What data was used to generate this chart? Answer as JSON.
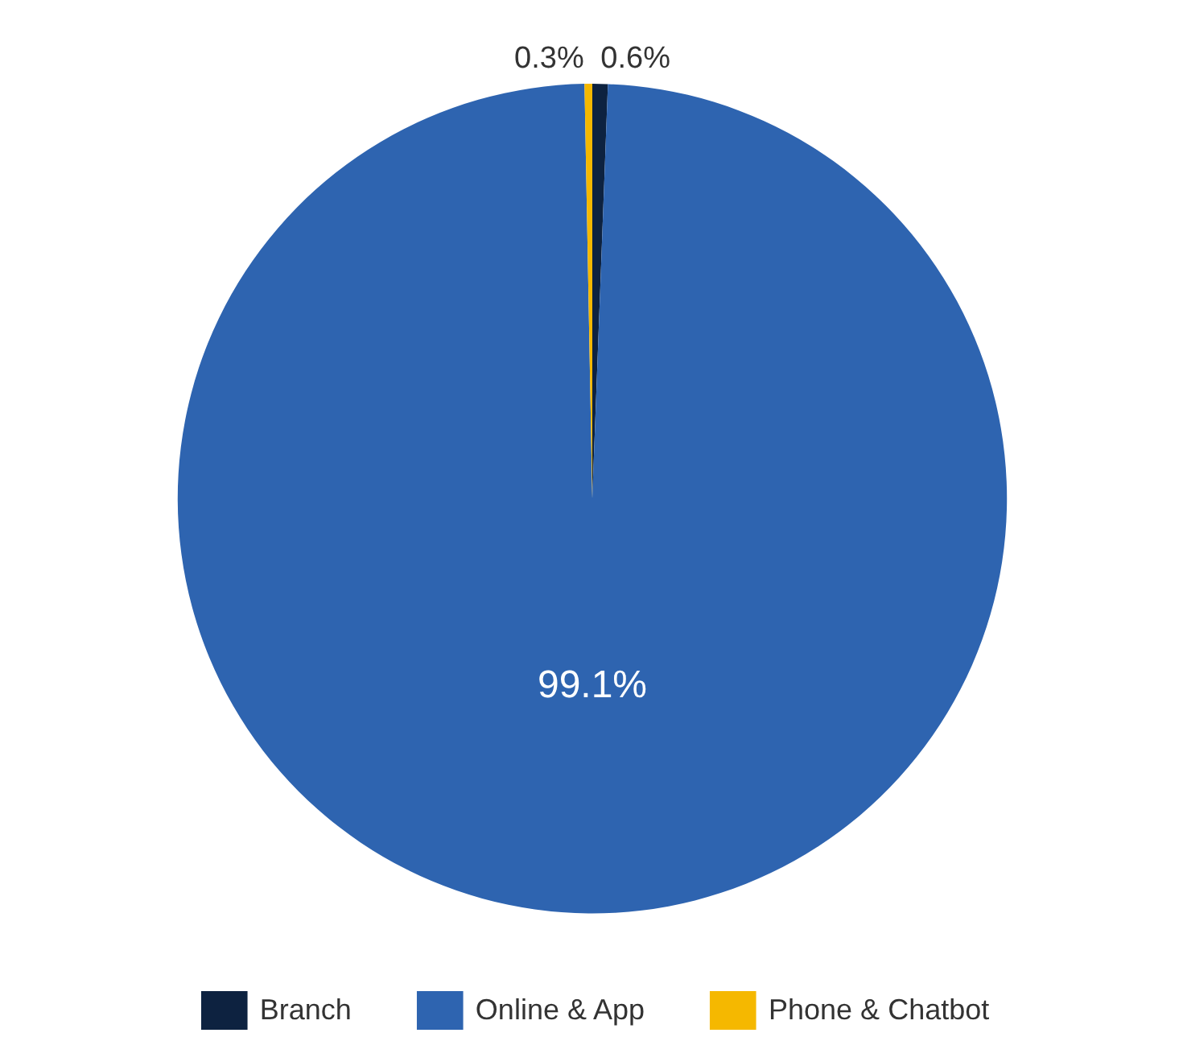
{
  "chart_data": {
    "type": "pie",
    "categories": [
      "Branch",
      "Online & App",
      "Phone & Chatbot"
    ],
    "values": [
      0.6,
      99.1,
      0.3
    ],
    "colors": [
      "#0d2240",
      "#2e64b0",
      "#f5b800"
    ],
    "value_labels": [
      "0.6%",
      "99.1%",
      "0.3%"
    ],
    "legend": "bottom"
  }
}
